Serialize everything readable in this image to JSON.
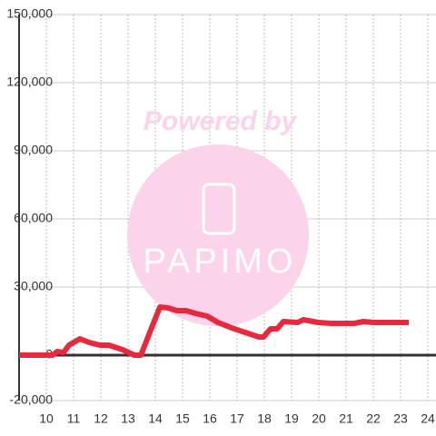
{
  "chart_data": {
    "type": "line",
    "watermark": [
      "Powered by",
      "PAPIMO"
    ],
    "x": [
      9.0,
      10.23,
      10.4,
      10.63,
      10.83,
      11.23,
      11.57,
      11.97,
      12.3,
      12.8,
      13.23,
      13.47,
      13.9,
      14.17,
      14.47,
      14.8,
      15.13,
      15.47,
      15.9,
      16.3,
      16.8,
      17.3,
      17.8,
      17.97,
      18.23,
      18.47,
      18.7,
      19.23,
      19.43,
      19.97,
      20.47,
      21.3,
      21.63,
      22.03,
      22.63,
      23.3
    ],
    "values": [
      0,
      0,
      1600,
      1200,
      4400,
      7200,
      5600,
      4400,
      4400,
      2400,
      0,
      0,
      13200,
      21200,
      20800,
      19600,
      19600,
      18400,
      17200,
      14400,
      12000,
      10000,
      8000,
      8000,
      11600,
      11600,
      14800,
      14400,
      15600,
      14400,
      14000,
      14000,
      14800,
      14400,
      14400,
      14400
    ],
    "color": "#e8283c",
    "xlim": [
      9,
      24.3
    ],
    "xticks": [
      10,
      11,
      12,
      13,
      14,
      15,
      16,
      17,
      18,
      19,
      20,
      21,
      22,
      23,
      24
    ],
    "ylim": [
      -20000,
      150000
    ],
    "yticks": [
      {
        "value": -20000,
        "label": "-20,000"
      },
      0,
      {
        "value": 30000,
        "label": "30,000"
      },
      {
        "value": 60000,
        "label": "60,000"
      },
      {
        "value": 90000,
        "label": "90,000"
      },
      {
        "value": 120000,
        "label": "120,000"
      },
      {
        "value": 150000,
        "label": "150,000"
      }
    ],
    "grid": true
  }
}
